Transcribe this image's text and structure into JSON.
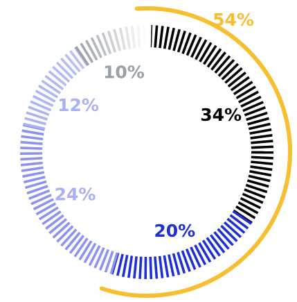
{
  "chart_data": {
    "type": "pie",
    "style": "segmented-ring-with-outer-arc",
    "slices": [
      {
        "label": "34%",
        "value": 34,
        "color": "#000000"
      },
      {
        "label": "20%",
        "value": 20,
        "color": "#1f2fd6"
      },
      {
        "label": "24%",
        "value": 24,
        "color": "#8c93ef"
      },
      {
        "label": "12%",
        "value": 12,
        "color": "#a9b0f4"
      },
      {
        "label": "10%",
        "value": 10,
        "color": "#9aa0a8"
      }
    ],
    "highlight": {
      "label": "54%",
      "value": 54,
      "color": "#f7bf2f",
      "covers": [
        "34%",
        "20%"
      ]
    },
    "label_colors": {
      "34%": "#000000",
      "20%": "#1f2fd6",
      "24%": "#a9b0f4",
      "12%": "#a9b0f4",
      "10%": "#9aa0a8",
      "54%": "#f7bf2f"
    },
    "gradient_fade_to": "#ffffff",
    "title": "",
    "legend": "none"
  }
}
